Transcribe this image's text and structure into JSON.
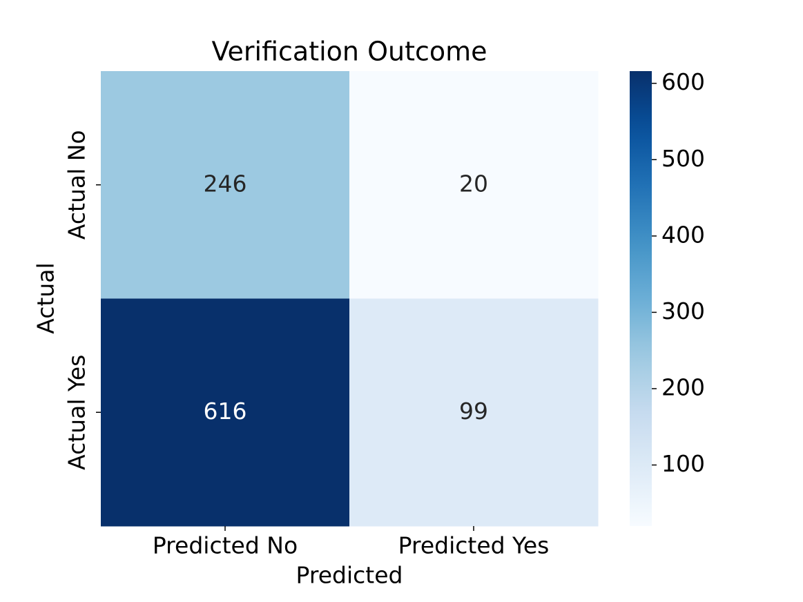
{
  "chart_data": {
    "type": "heatmap",
    "title": "Verification Outcome",
    "x_label": "Predicted",
    "y_label": "Actual",
    "x_categories": [
      "Predicted No",
      "Predicted Yes"
    ],
    "y_categories": [
      "Actual No",
      "Actual Yes"
    ],
    "values": [
      [
        246,
        20
      ],
      [
        616,
        99
      ]
    ],
    "colormap": "Blues",
    "clim": [
      20,
      616
    ],
    "cticks": [
      100,
      200,
      300,
      400,
      500,
      600
    ]
  }
}
